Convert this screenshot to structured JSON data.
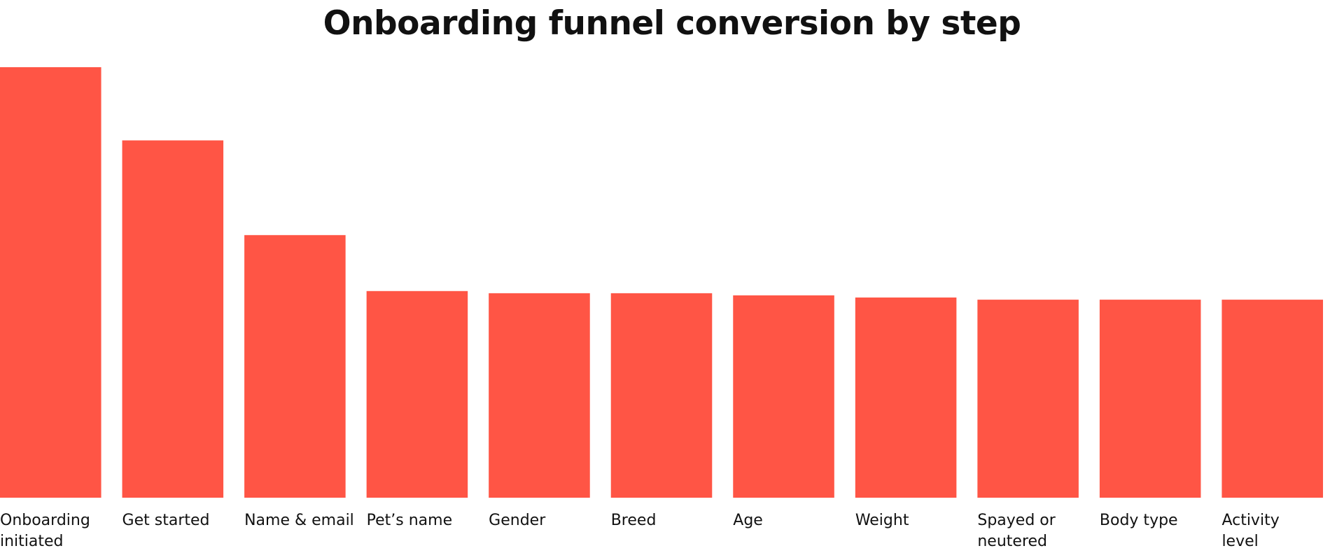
{
  "chart_data": {
    "type": "bar",
    "title": "Onboarding funnel conversion by step",
    "xlabel": "",
    "ylabel": "",
    "categories": [
      "Onboarding initiated",
      "Get started",
      "Name & email",
      "Pet’s name",
      "Gender",
      "Breed",
      "Age",
      "Weight",
      "Spayed or neutered",
      "Body type",
      "Activity level"
    ],
    "values": [
      100,
      83,
      61,
      48,
      47.5,
      47.5,
      47,
      46.5,
      46,
      46,
      46
    ],
    "ylim": [
      0,
      100
    ],
    "grid": false,
    "legend": "none",
    "bar_color": "#FF5545"
  }
}
